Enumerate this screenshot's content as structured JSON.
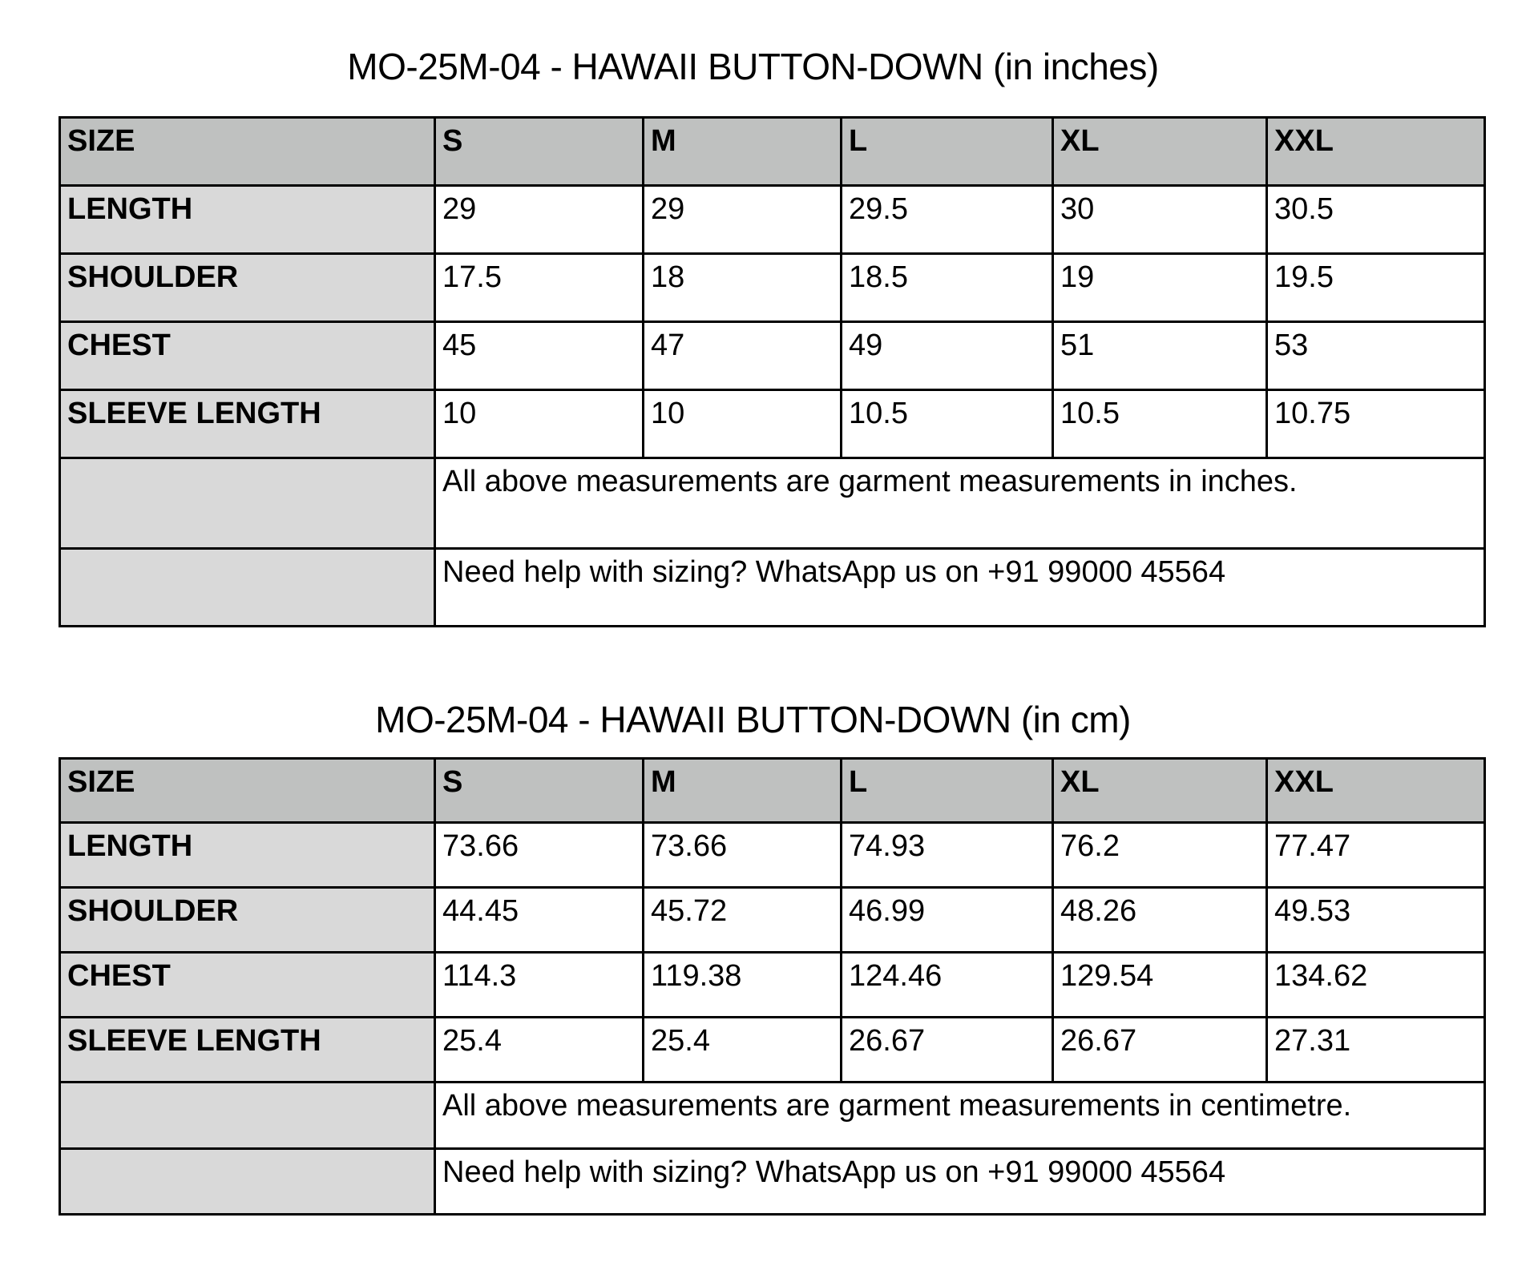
{
  "tables": [
    {
      "title": "MO-25M-04 - HAWAII BUTTON-DOWN (in inches)",
      "header": [
        "SIZE",
        "S",
        "M",
        "L",
        "XL",
        "XXL"
      ],
      "rows": [
        {
          "label": "LENGTH",
          "values": [
            "29",
            "29",
            "29.5",
            "30",
            "30.5"
          ]
        },
        {
          "label": "SHOULDER",
          "values": [
            "17.5",
            "18",
            "18.5",
            "19",
            "19.5"
          ]
        },
        {
          "label": "CHEST",
          "values": [
            "45",
            "47",
            "49",
            "51",
            "53"
          ]
        },
        {
          "label": "SLEEVE LENGTH",
          "values": [
            "10",
            "10",
            "10.5",
            "10.5",
            "10.75"
          ]
        }
      ],
      "note": "All above measurements are garment measurements in inches.",
      "help": "Need help with sizing? WhatsApp us on +91 99000 45564"
    },
    {
      "title": "MO-25M-04 - HAWAII BUTTON-DOWN (in cm)",
      "header": [
        "SIZE",
        "S",
        "M",
        "L",
        "XL",
        "XXL"
      ],
      "rows": [
        {
          "label": "LENGTH",
          "values": [
            "73.66",
            "73.66",
            "74.93",
            "76.2",
            "77.47"
          ]
        },
        {
          "label": "SHOULDER",
          "values": [
            "44.45",
            "45.72",
            "46.99",
            "48.26",
            "49.53"
          ]
        },
        {
          "label": "CHEST",
          "values": [
            "114.3",
            "119.38",
            "124.46",
            "129.54",
            "134.62"
          ]
        },
        {
          "label": "SLEEVE LENGTH",
          "values": [
            "25.4",
            "25.4",
            "26.67",
            "26.67",
            "27.31"
          ]
        }
      ],
      "note": "All above measurements are garment measurements in centimetre.",
      "help": "Need help with sizing? WhatsApp us on +91 99000 45564"
    }
  ],
  "colors": {
    "header_bg": "#bfc1c0",
    "label_bg": "#d9d9d9",
    "border": "#000000"
  }
}
